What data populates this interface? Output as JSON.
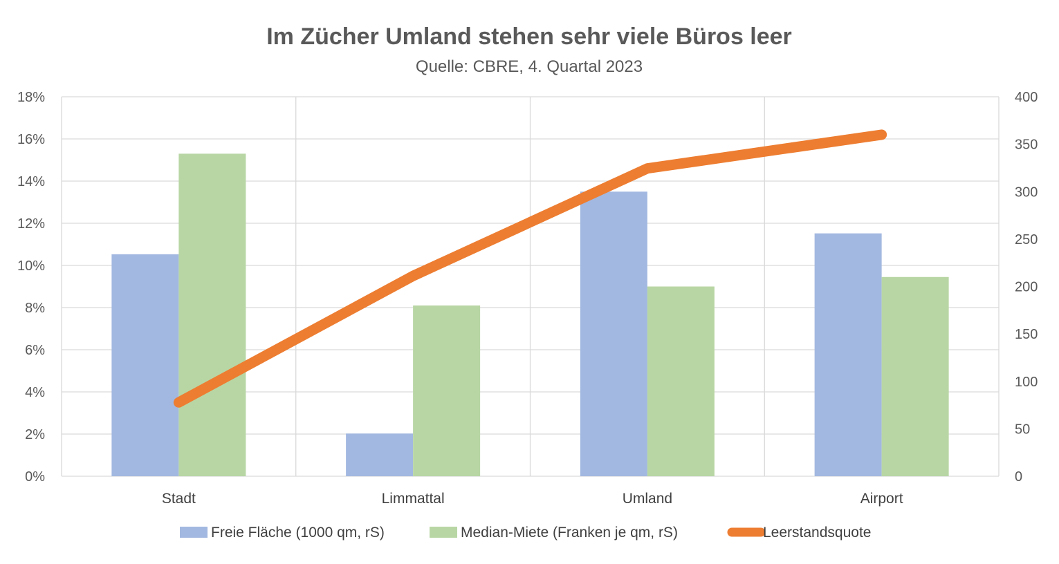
{
  "chart_data": {
    "type": "bar",
    "title": "Im Zücher Umland stehen sehr viele Büros leer",
    "subtitle": "Quelle: CBRE, 4. Quartal 2023",
    "categories": [
      "Stadt",
      "Limmattal",
      "Umland",
      "Airport"
    ],
    "y_left": {
      "range": [
        0,
        18
      ],
      "ticks": [
        0,
        2,
        4,
        6,
        8,
        10,
        12,
        14,
        16,
        18
      ],
      "tick_labels": [
        "0%",
        "2%",
        "4%",
        "6%",
        "8%",
        "10%",
        "12%",
        "14%",
        "16%",
        "18%"
      ]
    },
    "y_right": {
      "range": [
        0,
        400
      ],
      "ticks": [
        0,
        50,
        100,
        150,
        200,
        250,
        300,
        350,
        400
      ],
      "tick_labels": [
        "0",
        "50",
        "100",
        "150",
        "200",
        "250",
        "300",
        "350",
        "400"
      ]
    },
    "grid": true,
    "legend_position": "bottom",
    "series": [
      {
        "name": "Freie Fläche (1000 qm, rS)",
        "type": "bar",
        "axis": "right",
        "color": "#A2B8E0",
        "values": [
          234,
          45,
          300,
          256
        ]
      },
      {
        "name": "Median-Miete (Franken je qm, rS)",
        "type": "bar",
        "axis": "right",
        "color": "#B8D6A4",
        "values": [
          340,
          180,
          200,
          210
        ]
      },
      {
        "name": "Leerstandsquote",
        "type": "line",
        "axis": "left",
        "color": "#ED7D31",
        "values": [
          3.5,
          9.5,
          14.6,
          16.2
        ]
      }
    ]
  }
}
